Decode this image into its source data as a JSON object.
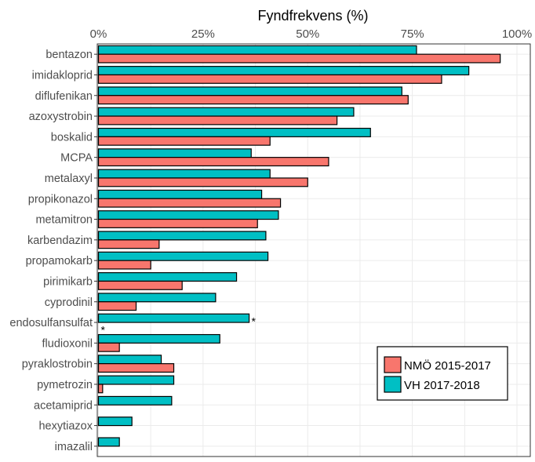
{
  "chart_data": {
    "type": "bar",
    "orientation": "horizontal",
    "title": "Fyndfrekvens (%)",
    "xlim": [
      0,
      100
    ],
    "xticks": [
      "0%",
      "25%",
      "50%",
      "75%",
      "100%"
    ],
    "xtick_values": [
      0,
      25,
      50,
      75,
      100
    ],
    "grid": true,
    "legend_position": "bottom-right",
    "categories": [
      "bentazon",
      "imidakloprid",
      "diflufenikan",
      "azoxystrobin",
      "boskalid",
      "MCPA",
      "metalaxyl",
      "propikonazol",
      "metamitron",
      "karbendazim",
      "propamokarb",
      "pirimikarb",
      "cyprodinil",
      "endosulfansulfat",
      "fludioxonil",
      "pyraklostrobin",
      "pymetrozin",
      "acetamiprid",
      "hexytiazox",
      "imazalil"
    ],
    "series": [
      {
        "name": "NMÖ 2015-2017",
        "color": "#F8766D",
        "values": [
          96,
          82,
          74,
          57,
          41,
          55,
          50,
          43.5,
          38,
          14.5,
          12.5,
          20,
          9,
          0,
          5,
          18,
          1,
          0,
          0,
          0
        ]
      },
      {
        "name": "VH 2017-2018",
        "color": "#00BFC4",
        "values": [
          76,
          88.5,
          72.5,
          61,
          65,
          36.5,
          41,
          39,
          43,
          40,
          40.5,
          33,
          28,
          36,
          29,
          15,
          18,
          17.5,
          8,
          5
        ]
      }
    ],
    "annotations": [
      {
        "text": "*",
        "category": "endosulfansulfat",
        "series": "NMÖ 2015-2017"
      },
      {
        "text": "*",
        "category": "endosulfansulfat",
        "series": "VH 2017-2018"
      }
    ]
  }
}
